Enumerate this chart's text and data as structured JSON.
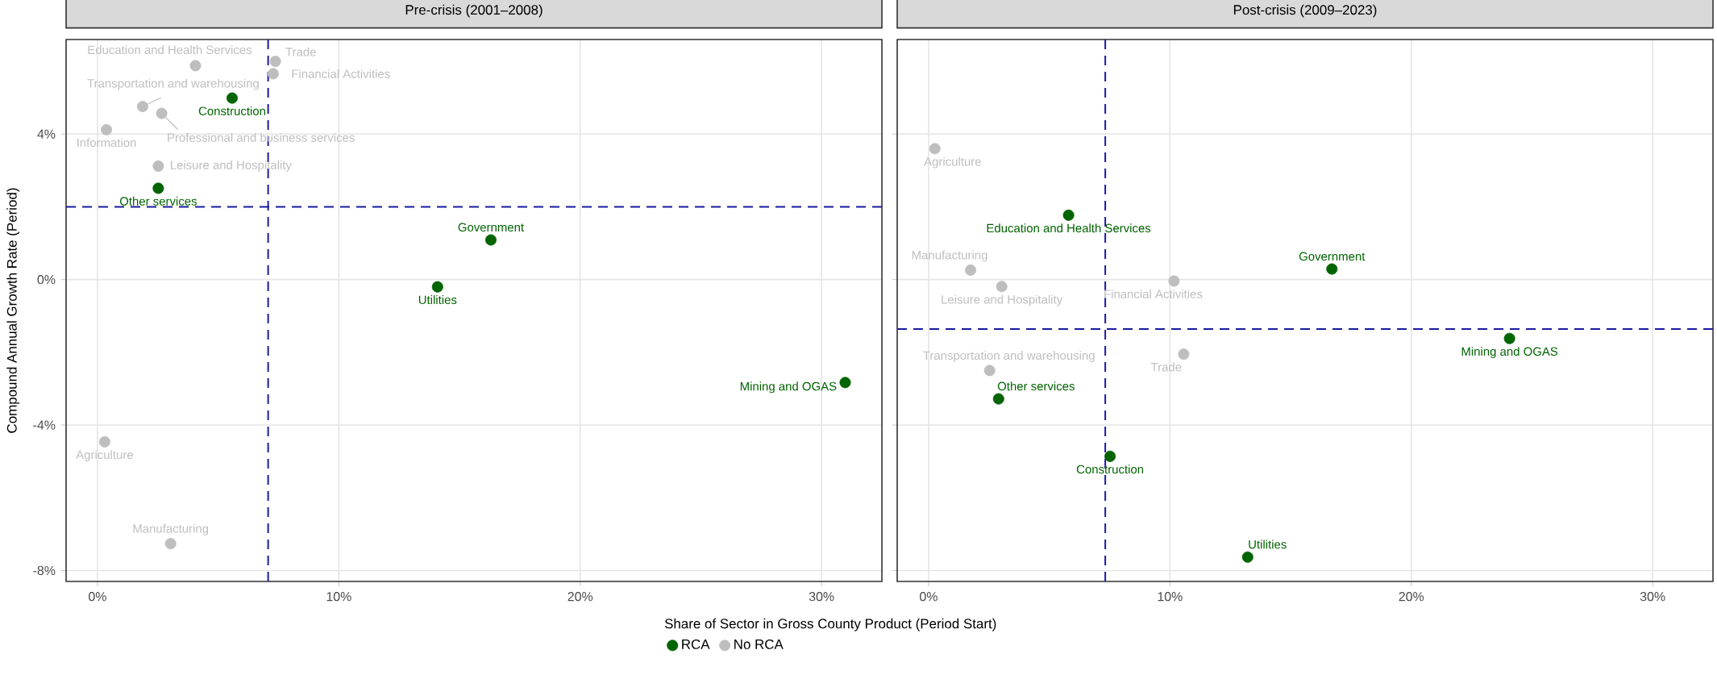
{
  "chart_data": [
    {
      "type": "scatter",
      "title": "Pre-crisis (2001–2008)",
      "xlabel": "Share of Sector in Gross County Product (Period Start)",
      "ylabel": "Compound Annual Growth Rate (Period)",
      "series": [
        {
          "name": "RCA",
          "color": "#006400",
          "x": [
            5.58,
            2.52,
            16.3,
            14.09,
            30.98
          ],
          "values": [
            4.99,
            2.51,
            1.09,
            -0.2,
            -2.83
          ]
        },
        {
          "name": "No RCA",
          "color": "#bebebe",
          "x": [
            4.06,
            7.37,
            7.28,
            1.87,
            2.66,
            0.37,
            2.52,
            0.3,
            3.03
          ],
          "values": [
            5.88,
            6.0,
            5.66,
            4.76,
            4.57,
            4.12,
            3.12,
            -4.46,
            -7.26
          ]
        }
      ],
      "annotations": [
        {
          "text": "Construction",
          "x": 5.58,
          "y": 4.99
        },
        {
          "text": "Other services",
          "x": 2.52,
          "y": 2.51
        },
        {
          "text": "Government",
          "x": 16.3,
          "y": 1.09
        },
        {
          "text": "Utilities",
          "x": 14.09,
          "y": -0.2
        },
        {
          "text": "Mining and OGAS",
          "x": 30.98,
          "y": -2.83
        },
        {
          "text": "Education and Health Services",
          "x": 4.06,
          "y": 5.88
        },
        {
          "text": "Trade",
          "x": 7.37,
          "y": 6.0
        },
        {
          "text": "Financial Activities",
          "x": 7.28,
          "y": 5.66
        },
        {
          "text": "Transportation and warehousing",
          "x": 1.87,
          "y": 4.76
        },
        {
          "text": "Professional and business services",
          "x": 2.66,
          "y": 4.57
        },
        {
          "text": "Information",
          "x": 0.37,
          "y": 4.12
        },
        {
          "text": "Leisure and Hospitality",
          "x": 2.52,
          "y": 3.12
        },
        {
          "text": "Agriculture",
          "x": 0.3,
          "y": -4.46
        },
        {
          "text": "Manufacturing",
          "x": 3.03,
          "y": -7.26
        }
      ],
      "ref_lines": [
        {
          "axis": "x",
          "value": 7.07,
          "color": "#1a1aa0",
          "line_style": "dashed"
        },
        {
          "axis": "y",
          "value": 2.0,
          "color": "#1a1aa0",
          "line_style": "dashed"
        }
      ],
      "xlim": [
        -1.3,
        32.5
      ],
      "ylim": [
        -8.3,
        6.6
      ],
      "xticks": [
        {
          "value": 0,
          "label": "0%"
        },
        {
          "value": 10,
          "label": "10%"
        },
        {
          "value": 20,
          "label": "20%"
        },
        {
          "value": 30,
          "label": "30%"
        }
      ],
      "yticks": [
        {
          "value": -8,
          "label": "-8%"
        },
        {
          "value": -4,
          "label": "-4%"
        },
        {
          "value": 0,
          "label": "0%"
        },
        {
          "value": 4,
          "label": "4%"
        }
      ],
      "grid": true,
      "legend": "bottom"
    },
    {
      "type": "scatter",
      "title": "Post-crisis (2009–2023)",
      "series": [
        {
          "color": "#006400",
          "x": [
            5.8,
            16.71,
            24.07,
            2.9,
            7.52,
            13.22
          ],
          "values": [
            1.77,
            0.29,
            -1.62,
            -3.28,
            -4.86,
            -7.63
          ]
        },
        {
          "color": "#bebebe",
          "x": [
            0.26,
            1.74,
            3.03,
            10.17,
            10.57,
            2.53
          ],
          "values": [
            3.6,
            0.26,
            -0.19,
            -0.04,
            -2.05,
            -2.5
          ]
        }
      ],
      "annotations": [
        {
          "text": "Education and Health Services",
          "x": 5.8,
          "y": 1.77
        },
        {
          "text": "Government",
          "x": 16.71,
          "y": 0.29
        },
        {
          "text": "Mining and OGAS",
          "x": 24.07,
          "y": -1.62
        },
        {
          "text": "Other services",
          "x": 2.9,
          "y": -3.28
        },
        {
          "text": "Construction",
          "x": 7.52,
          "y": -4.86
        },
        {
          "text": "Utilities",
          "x": 13.22,
          "y": -7.63
        },
        {
          "text": "Agriculture",
          "x": 0.26,
          "y": 3.6
        },
        {
          "text": "Manufacturing",
          "x": 1.74,
          "y": 0.26
        },
        {
          "text": "Leisure and Hospitality",
          "x": 3.03,
          "y": -0.19
        },
        {
          "text": "Financial Activities",
          "x": 10.17,
          "y": -0.04
        },
        {
          "text": "Trade",
          "x": 10.57,
          "y": -2.05
        },
        {
          "text": "Transportation and warehousing",
          "x": 2.53,
          "y": -2.5
        }
      ],
      "ref_lines": [
        {
          "axis": "x",
          "value": 7.32,
          "color": "#1a1aa0",
          "line_style": "dashed"
        },
        {
          "axis": "y",
          "value": -1.36,
          "color": "#1a1aa0",
          "line_style": "dashed"
        }
      ],
      "xlim": [
        -1.3,
        32.5
      ],
      "ylim": [
        -8.3,
        6.6
      ],
      "xticks": [
        {
          "value": 0,
          "label": "0%"
        },
        {
          "value": 10,
          "label": "10%"
        },
        {
          "value": 20,
          "label": "20%"
        },
        {
          "value": 30,
          "label": "30%"
        }
      ],
      "yticks": [
        {
          "value": -8,
          "label": null
        },
        {
          "value": -4,
          "label": null
        },
        {
          "value": 0,
          "label": null
        },
        {
          "value": 4,
          "label": null
        }
      ],
      "tick_labels": "x",
      "grid": true
    }
  ]
}
